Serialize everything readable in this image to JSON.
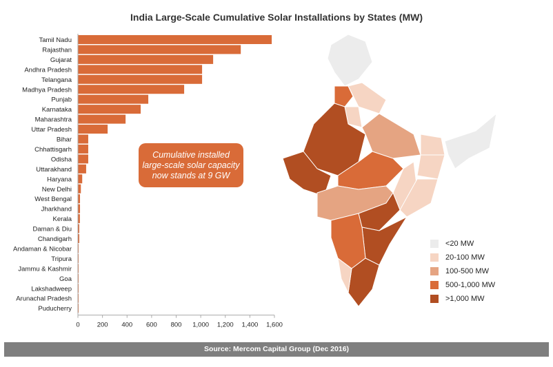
{
  "chart_data": {
    "type": "bar",
    "orientation": "horizontal",
    "title": "India Large-Scale Cumulative Solar Installations by States (MW)",
    "categories": [
      "Tamil Nadu",
      "Rajasthan",
      "Gujarat",
      "Andhra Pradesh",
      "Telangana",
      "Madhya Pradesh",
      "Punjab",
      "Karnataka",
      "Maharashtra",
      "Uttar Pradesh",
      "Bihar",
      "Chhattisgarh",
      "Odisha",
      "Uttarakhand",
      "Haryana",
      "New Delhi",
      "West Bengal",
      "Jharkhand",
      "Kerala",
      "Daman & Diu",
      "Chandigarh",
      "Andaman & Nicobar",
      "Tripura",
      "Jammu & Kashmir",
      "Goa",
      "Lakshadweep",
      "Arunachal Pradesh",
      "Puducherry"
    ],
    "values": [
      1578,
      1326,
      1101,
      1011,
      1011,
      865,
      573,
      511,
      388,
      242,
      84,
      84,
      84,
      67,
      35,
      24,
      17,
      17,
      16,
      11,
      11,
      1,
      1,
      1,
      1,
      1,
      1,
      1
    ],
    "xlim": [
      0,
      1600
    ],
    "xticks": [
      "0",
      "200",
      "400",
      "600",
      "800",
      "1,000",
      "1,200",
      "1,400",
      "1,600"
    ],
    "bar_color": "#d96b38"
  },
  "callout": {
    "lines": [
      "Cumulative installed",
      "large-scale solar capacity",
      "now stands at 9 GW"
    ]
  },
  "legend": [
    {
      "label": "<20 MW",
      "color": "#ececec"
    },
    {
      "label": "20-100 MW",
      "color": "#f6d5c3"
    },
    {
      "label": "100-500 MW",
      "color": "#e5a482"
    },
    {
      "label": "500-1,000 MW",
      "color": "#d96b38"
    },
    {
      "label": ">1,000 MW",
      "color": "#b14e22"
    }
  ],
  "footer": "Source: Mercom Capital Group (Dec 2016)"
}
